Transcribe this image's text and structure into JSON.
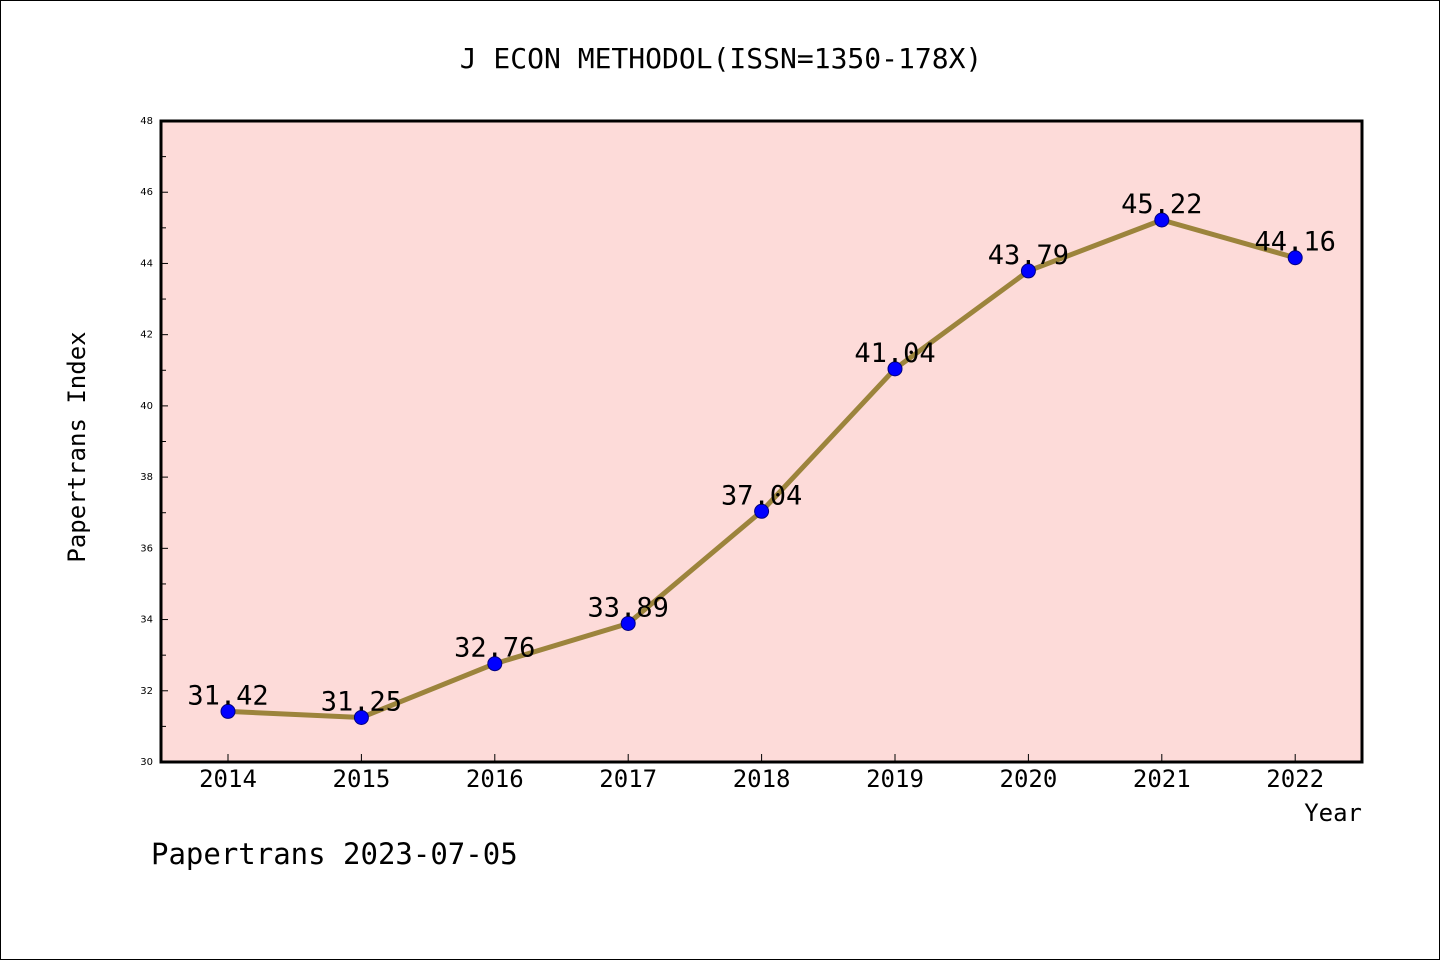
{
  "chart_data": {
    "type": "line",
    "title": "J ECON METHODOL(ISSN=1350-178X)",
    "xlabel": "Year",
    "ylabel": "Papertrans Index",
    "categories": [
      "2014",
      "2015",
      "2016",
      "2017",
      "2018",
      "2019",
      "2020",
      "2021",
      "2022"
    ],
    "series": [
      {
        "values": [
          31.42,
          31.25,
          32.76,
          33.89,
          37.04,
          41.04,
          43.79,
          45.22,
          44.16
        ]
      }
    ],
    "data_labels": [
      "31.42",
      "31.25",
      "32.76",
      "33.89",
      "37.04",
      "41.04",
      "43.79",
      "45.22",
      "44.16"
    ],
    "ylim": [
      30,
      48
    ],
    "yticks": [
      "30",
      "32",
      "34",
      "36",
      "38",
      "40",
      "42",
      "44",
      "46",
      "48"
    ],
    "grid": false,
    "legend": "none",
    "footer": "Papertrans 2023-07-05",
    "colors": {
      "plot_background": "#fddbd9",
      "line": "#9c843c",
      "marker": "#0000ff",
      "marker_edge": "#000080",
      "axes": "#000000"
    }
  }
}
